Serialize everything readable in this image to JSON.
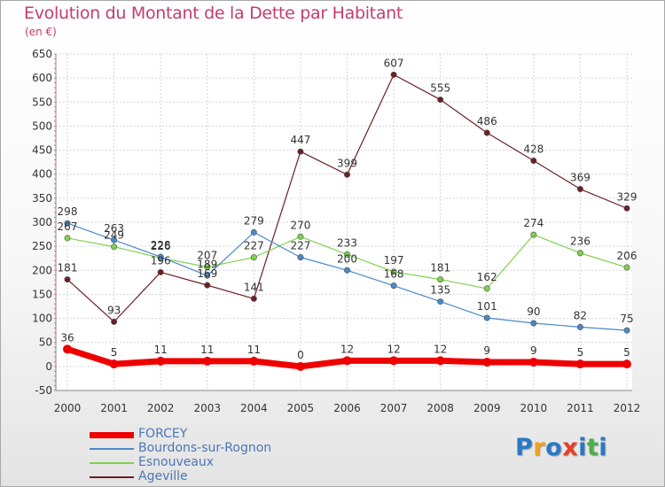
{
  "title": "Evolution du Montant de la Dette par Habitant",
  "subtitle": "(en €)",
  "logo": {
    "text": "Proxiti",
    "letter_colors": [
      "#2a79c5",
      "#f0a21f",
      "#2a79c5",
      "#e83e27",
      "#2a79c5",
      "#4cae4c",
      "#2a79c5"
    ]
  },
  "chart_data": {
    "type": "line",
    "title": "Evolution du Montant de la Dette par Habitant",
    "subtitle": "(en €)",
    "x": [
      "2000",
      "2001",
      "2002",
      "2003",
      "2004",
      "2005",
      "2006",
      "2007",
      "2008",
      "2009",
      "2010",
      "2011",
      "2012"
    ],
    "ylim": [
      -50,
      650
    ],
    "yticks": [
      -50,
      0,
      50,
      100,
      150,
      200,
      250,
      300,
      350,
      400,
      450,
      500,
      550,
      600,
      650
    ],
    "grid": true,
    "legend_position": "bottom-left",
    "series": [
      {
        "name": "FORCEY",
        "color": "#ee0000",
        "values": [
          36,
          5,
          11,
          11,
          11,
          0,
          12,
          12,
          12,
          9,
          9,
          5,
          5
        ]
      },
      {
        "name": "Bourdons-sur-Rognon",
        "color": "#4a88c8",
        "values": [
          298,
          263,
          228,
          189,
          279,
          227,
          200,
          168,
          135,
          101,
          90,
          82,
          75
        ]
      },
      {
        "name": "Esnouveaux",
        "color": "#7fd14d",
        "values": [
          267,
          249,
          226,
          207,
          227,
          270,
          233,
          197,
          181,
          162,
          274,
          236,
          206
        ]
      },
      {
        "name": "Ageville",
        "color": "#6b1f25",
        "values": [
          181,
          93,
          196,
          169,
          141,
          447,
          399,
          607,
          555,
          486,
          428,
          369,
          329
        ]
      }
    ]
  }
}
